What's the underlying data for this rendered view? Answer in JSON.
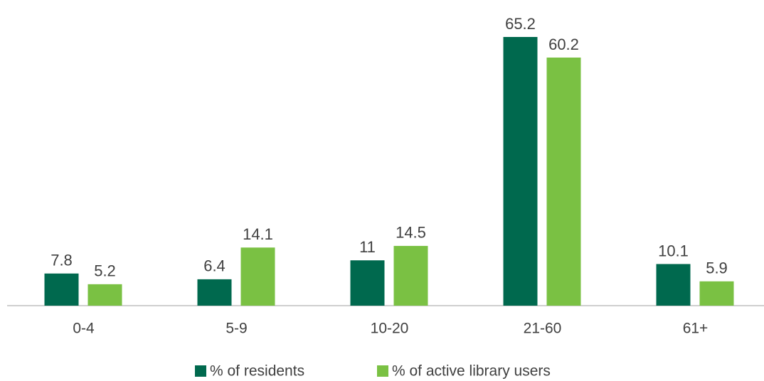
{
  "chart_data": {
    "type": "bar",
    "categories": [
      "0-4",
      "5-9",
      "10-20",
      "21-60",
      "61+"
    ],
    "series": [
      {
        "name": "% of residents",
        "color": "#00694e",
        "values": [
          7.8,
          6.4,
          11,
          65.2,
          10.1
        ]
      },
      {
        "name": "% of active library users",
        "color": "#7ac143",
        "values": [
          5.2,
          14.1,
          14.5,
          60.2,
          5.9
        ]
      }
    ],
    "legend": "bottom"
  }
}
